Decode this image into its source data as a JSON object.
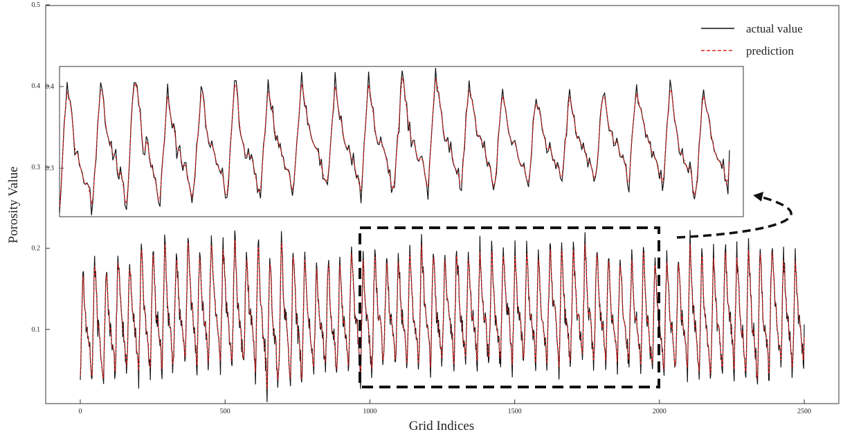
{
  "chart_data": {
    "type": "line",
    "xlabel": "Grid Indices",
    "ylabel": "Porosity Value",
    "xlim": [
      -130,
      2560
    ],
    "ylim": [
      0.0,
      0.5
    ],
    "x_ticks": [
      "0",
      "500",
      "1000",
      "1500",
      "2000",
      "2500"
    ],
    "y_ticks": [
      "0.1",
      "0.2",
      "0.3",
      "0.4",
      "0.5"
    ],
    "legend": {
      "position": "top-right",
      "entries": [
        "actual value",
        "prediction"
      ]
    },
    "series": [
      {
        "name": "actual value",
        "color": "#111111",
        "style": "solid",
        "x_range": [
          0,
          2500
        ],
        "oscillation_period": 41,
        "peak_values": [
          0.18,
          0.19,
          0.18,
          0.2,
          0.19,
          0.21,
          0.2,
          0.21,
          0.2,
          0.22,
          0.21,
          0.22,
          0.21,
          0.22,
          0.2,
          0.22,
          0.2,
          0.21,
          0.2,
          0.2,
          0.18,
          0.19,
          0.18,
          0.21,
          0.19,
          0.2,
          0.19,
          0.2,
          0.2,
          0.21,
          0.2,
          0.2,
          0.21,
          0.2,
          0.21,
          0.2,
          0.21,
          0.2,
          0.2,
          0.2,
          0.21,
          0.2,
          0.2,
          0.21,
          0.2,
          0.2,
          0.2,
          0.19,
          0.2,
          0.19,
          0.2,
          0.19,
          0.21,
          0.2,
          0.2,
          0.21,
          0.2,
          0.21,
          0.2,
          0.21,
          0.2,
          0.19
        ],
        "trough_values": [
          0.04,
          0.03,
          0.04,
          0.04,
          0.05,
          0.04,
          0.05,
          0.04,
          0.06,
          0.05,
          0.05,
          0.06,
          0.05,
          0.04,
          0.05,
          0.03,
          0.02,
          0.04,
          0.03,
          0.04,
          0.05,
          0.04,
          0.05,
          0.05,
          0.04,
          0.05,
          0.06,
          0.05,
          0.05,
          0.06,
          0.05,
          0.06,
          0.05,
          0.06,
          0.05,
          0.05,
          0.06,
          0.05,
          0.06,
          0.05,
          0.06,
          0.05,
          0.06,
          0.05,
          0.06,
          0.05,
          0.05,
          0.06,
          0.04,
          0.05,
          0.04,
          0.05,
          0.04,
          0.03,
          0.04,
          0.05,
          0.04,
          0.03,
          0.04,
          0.05,
          0.04,
          0.05
        ]
      },
      {
        "name": "prediction",
        "color": "#e02020",
        "style": "dashed",
        "x_range": [
          0,
          2500
        ],
        "tracks": "actual value"
      }
    ],
    "zoom_region": {
      "x_range": [
        975,
        2000
      ],
      "y_range": [
        0.03,
        0.225
      ]
    },
    "inset": {
      "y_ticks": [
        "0.3",
        "0.4"
      ],
      "ylim": [
        0.24,
        0.42
      ],
      "peak_values": [
        0.4,
        0.41,
        0.42,
        0.4,
        0.4,
        0.41,
        0.41,
        0.41,
        0.41,
        0.41,
        0.41,
        0.42,
        0.41,
        0.4,
        0.39,
        0.39,
        0.4,
        0.4,
        0.4,
        0.4
      ],
      "trough_values": [
        0.245,
        0.255,
        0.255,
        0.255,
        0.265,
        0.255,
        0.265,
        0.27,
        0.27,
        0.265,
        0.27,
        0.27,
        0.275,
        0.275,
        0.28,
        0.28,
        0.28,
        0.28,
        0.265,
        0.27
      ]
    }
  }
}
